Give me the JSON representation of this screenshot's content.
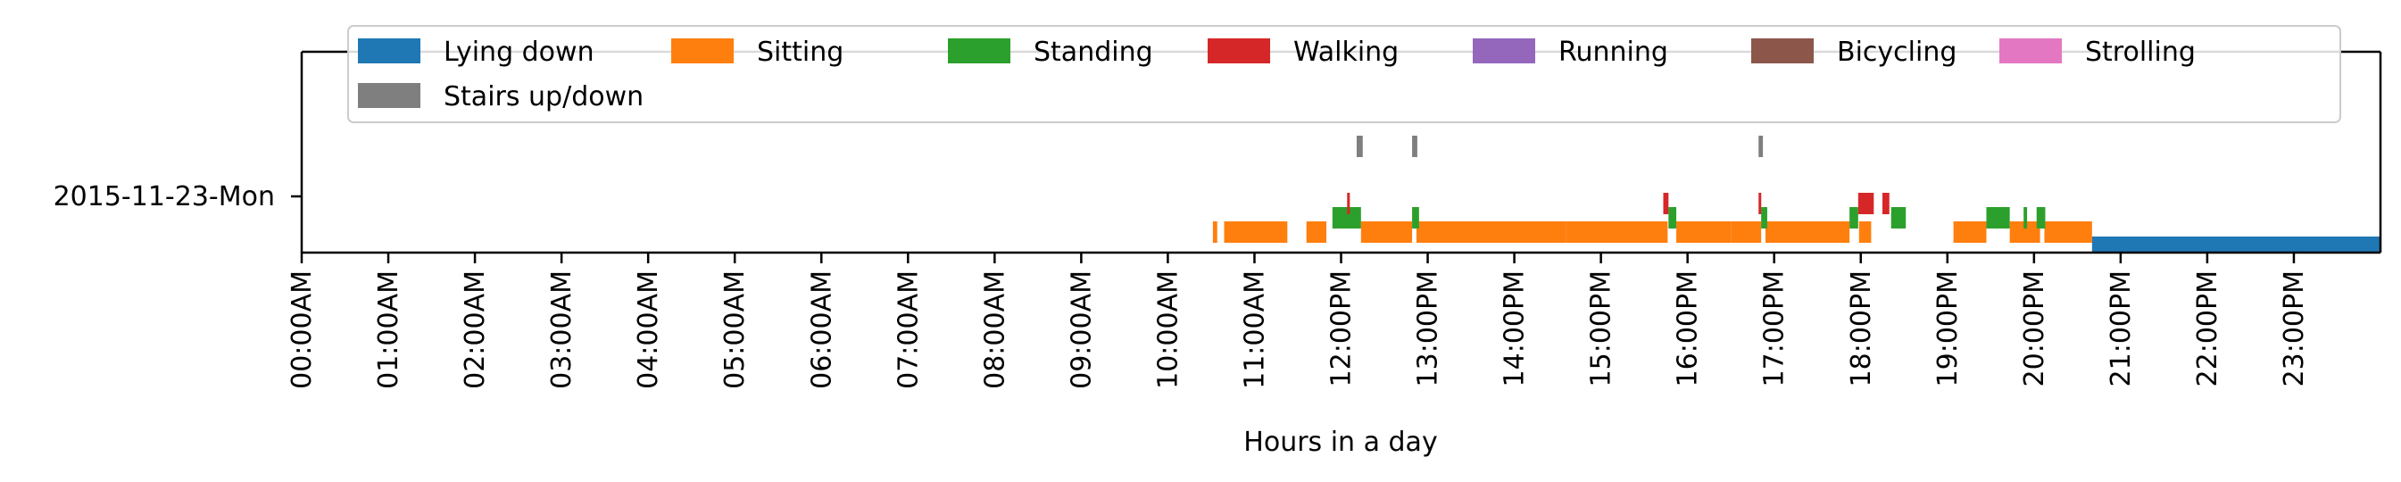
{
  "chart_data": {
    "type": "timeline",
    "title": "",
    "xlabel": "Hours in a day",
    "ylabel": "",
    "xlim": [
      0,
      24
    ],
    "x_ticks": [
      "00:00AM",
      "01:00AM",
      "02:00AM",
      "03:00AM",
      "04:00AM",
      "05:00AM",
      "06:00AM",
      "07:00AM",
      "08:00AM",
      "09:00AM",
      "10:00AM",
      "11:00AM",
      "12:00PM",
      "13:00PM",
      "14:00PM",
      "15:00PM",
      "16:00PM",
      "17:00PM",
      "18:00PM",
      "19:00PM",
      "20:00PM",
      "21:00PM",
      "22:00PM",
      "23:00PM"
    ],
    "rows": [
      "2015-11-23-Mon"
    ],
    "grid": false,
    "legend_position": "top",
    "series": [
      {
        "name": "Lying down",
        "color": "#1f77b4",
        "intervals": [
          [
            20.67,
            24.0
          ]
        ]
      },
      {
        "name": "Sitting",
        "color": "#ff7f0e",
        "intervals": [
          [
            10.52,
            10.57
          ],
          [
            10.65,
            11.38
          ],
          [
            11.6,
            11.83
          ],
          [
            12.23,
            12.82
          ],
          [
            12.87,
            14.6
          ],
          [
            14.6,
            15.77
          ],
          [
            15.87,
            16.5
          ],
          [
            16.5,
            16.85
          ],
          [
            16.9,
            17.87
          ],
          [
            17.98,
            18.12
          ],
          [
            19.07,
            19.45
          ],
          [
            19.72,
            20.07
          ],
          [
            20.12,
            20.67
          ]
        ]
      },
      {
        "name": "Standing",
        "color": "#2ca02c",
        "intervals": [
          [
            11.9,
            12.23
          ],
          [
            12.82,
            12.9
          ],
          [
            15.78,
            15.87
          ],
          [
            16.85,
            16.92
          ],
          [
            17.87,
            17.97
          ],
          [
            18.35,
            18.52
          ],
          [
            19.45,
            19.72
          ],
          [
            19.88,
            19.92
          ],
          [
            20.03,
            20.13
          ]
        ]
      },
      {
        "name": "Walking",
        "color": "#d62728",
        "intervals": [
          [
            12.07,
            12.1
          ],
          [
            15.72,
            15.78
          ],
          [
            16.82,
            16.85
          ],
          [
            17.97,
            18.15
          ],
          [
            18.25,
            18.33
          ]
        ]
      },
      {
        "name": "Running",
        "color": "#9467bd",
        "intervals": []
      },
      {
        "name": "Bicycling",
        "color": "#8c564b",
        "intervals": []
      },
      {
        "name": "Strolling",
        "color": "#e377c2",
        "intervals": []
      },
      {
        "name": "Stairs up/down",
        "color": "#7f7f7f",
        "intervals": [
          [
            12.18,
            12.25
          ],
          [
            12.82,
            12.88
          ],
          [
            16.82,
            16.87
          ]
        ]
      }
    ]
  }
}
